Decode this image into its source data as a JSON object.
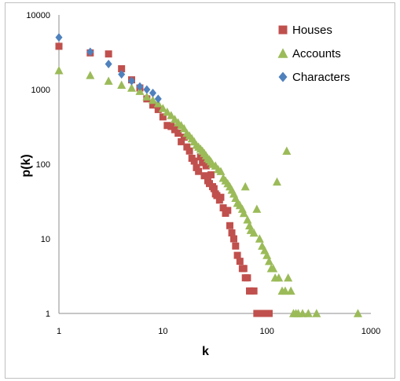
{
  "chart_data": {
    "type": "scatter",
    "title": "",
    "xlabel": "k",
    "ylabel": "p(k)",
    "x_scale": "log",
    "y_scale": "log",
    "xlim": [
      1,
      1000
    ],
    "ylim": [
      1,
      10000
    ],
    "x_ticks": [
      "1",
      "10",
      "100",
      "1000"
    ],
    "y_ticks": [
      "1",
      "10",
      "100",
      "1000",
      "10000"
    ],
    "grid": false,
    "legend_position": "top-right",
    "series": [
      {
        "name": "Houses",
        "marker": "square",
        "color": "#c0504d",
        "points": [
          [
            1,
            3800
          ],
          [
            2,
            3100
          ],
          [
            3,
            3000
          ],
          [
            4,
            1900
          ],
          [
            5,
            1350
          ],
          [
            6,
            1050
          ],
          [
            7,
            750
          ],
          [
            8,
            620
          ],
          [
            9,
            540
          ],
          [
            10,
            430
          ],
          [
            11,
            330
          ],
          [
            12,
            320
          ],
          [
            13,
            290
          ],
          [
            14,
            260
          ],
          [
            15,
            200
          ],
          [
            16,
            230
          ],
          [
            17,
            170
          ],
          [
            18,
            150
          ],
          [
            19,
            120
          ],
          [
            20,
            110
          ],
          [
            21,
            90
          ],
          [
            22,
            80
          ],
          [
            23,
            125
          ],
          [
            24,
            105
          ],
          [
            25,
            70
          ],
          [
            26,
            95
          ],
          [
            27,
            60
          ],
          [
            28,
            55
          ],
          [
            29,
            72
          ],
          [
            30,
            50
          ],
          [
            31,
            47
          ],
          [
            32,
            40
          ],
          [
            33,
            38
          ],
          [
            35,
            33
          ],
          [
            36,
            36
          ],
          [
            38,
            26
          ],
          [
            40,
            22
          ],
          [
            42,
            24
          ],
          [
            44,
            15
          ],
          [
            46,
            12
          ],
          [
            48,
            10
          ],
          [
            50,
            8
          ],
          [
            52,
            6
          ],
          [
            55,
            5
          ],
          [
            58,
            4
          ],
          [
            60,
            4
          ],
          [
            62,
            3
          ],
          [
            65,
            3
          ],
          [
            68,
            2
          ],
          [
            70,
            2
          ],
          [
            75,
            2
          ],
          [
            80,
            1
          ],
          [
            85,
            1
          ],
          [
            90,
            1
          ],
          [
            95,
            1
          ],
          [
            100,
            1
          ],
          [
            105,
            1
          ]
        ]
      },
      {
        "name": "Accounts",
        "marker": "triangle",
        "color": "#9bbb59",
        "points": [
          [
            1,
            1800
          ],
          [
            2,
            1550
          ],
          [
            3,
            1300
          ],
          [
            4,
            1150
          ],
          [
            5,
            1050
          ],
          [
            6,
            950
          ],
          [
            7,
            800
          ],
          [
            8,
            720
          ],
          [
            9,
            650
          ],
          [
            10,
            560
          ],
          [
            11,
            500
          ],
          [
            12,
            450
          ],
          [
            13,
            400
          ],
          [
            14,
            360
          ],
          [
            15,
            330
          ],
          [
            16,
            300
          ],
          [
            17,
            260
          ],
          [
            18,
            240
          ],
          [
            19,
            220
          ],
          [
            20,
            200
          ],
          [
            21,
            180
          ],
          [
            22,
            170
          ],
          [
            23,
            160
          ],
          [
            24,
            150
          ],
          [
            25,
            140
          ],
          [
            26,
            130
          ],
          [
            27,
            120
          ],
          [
            28,
            115
          ],
          [
            29,
            108
          ],
          [
            30,
            100
          ],
          [
            32,
            95
          ],
          [
            34,
            85
          ],
          [
            36,
            80
          ],
          [
            38,
            65
          ],
          [
            40,
            60
          ],
          [
            42,
            55
          ],
          [
            44,
            50
          ],
          [
            46,
            45
          ],
          [
            48,
            40
          ],
          [
            50,
            35
          ],
          [
            52,
            30
          ],
          [
            55,
            28
          ],
          [
            58,
            25
          ],
          [
            60,
            22
          ],
          [
            62,
            50
          ],
          [
            65,
            18
          ],
          [
            68,
            15
          ],
          [
            70,
            13
          ],
          [
            75,
            12
          ],
          [
            80,
            25
          ],
          [
            85,
            10
          ],
          [
            90,
            8
          ],
          [
            95,
            7
          ],
          [
            100,
            6
          ],
          [
            105,
            5
          ],
          [
            110,
            4
          ],
          [
            115,
            4
          ],
          [
            120,
            3
          ],
          [
            125,
            58
          ],
          [
            130,
            3
          ],
          [
            140,
            2
          ],
          [
            150,
            2
          ],
          [
            155,
            150
          ],
          [
            160,
            3
          ],
          [
            170,
            2
          ],
          [
            180,
            1
          ],
          [
            190,
            1
          ],
          [
            200,
            1
          ],
          [
            220,
            1
          ],
          [
            250,
            1
          ],
          [
            300,
            1
          ],
          [
            750,
            1
          ]
        ]
      },
      {
        "name": "Characters",
        "marker": "diamond",
        "color": "#4f81bd",
        "points": [
          [
            1,
            5000
          ],
          [
            2,
            3200
          ],
          [
            3,
            2200
          ],
          [
            4,
            1600
          ],
          [
            5,
            1300
          ],
          [
            6,
            1100
          ],
          [
            7,
            1000
          ],
          [
            8,
            900
          ],
          [
            9,
            750
          ]
        ]
      }
    ]
  }
}
